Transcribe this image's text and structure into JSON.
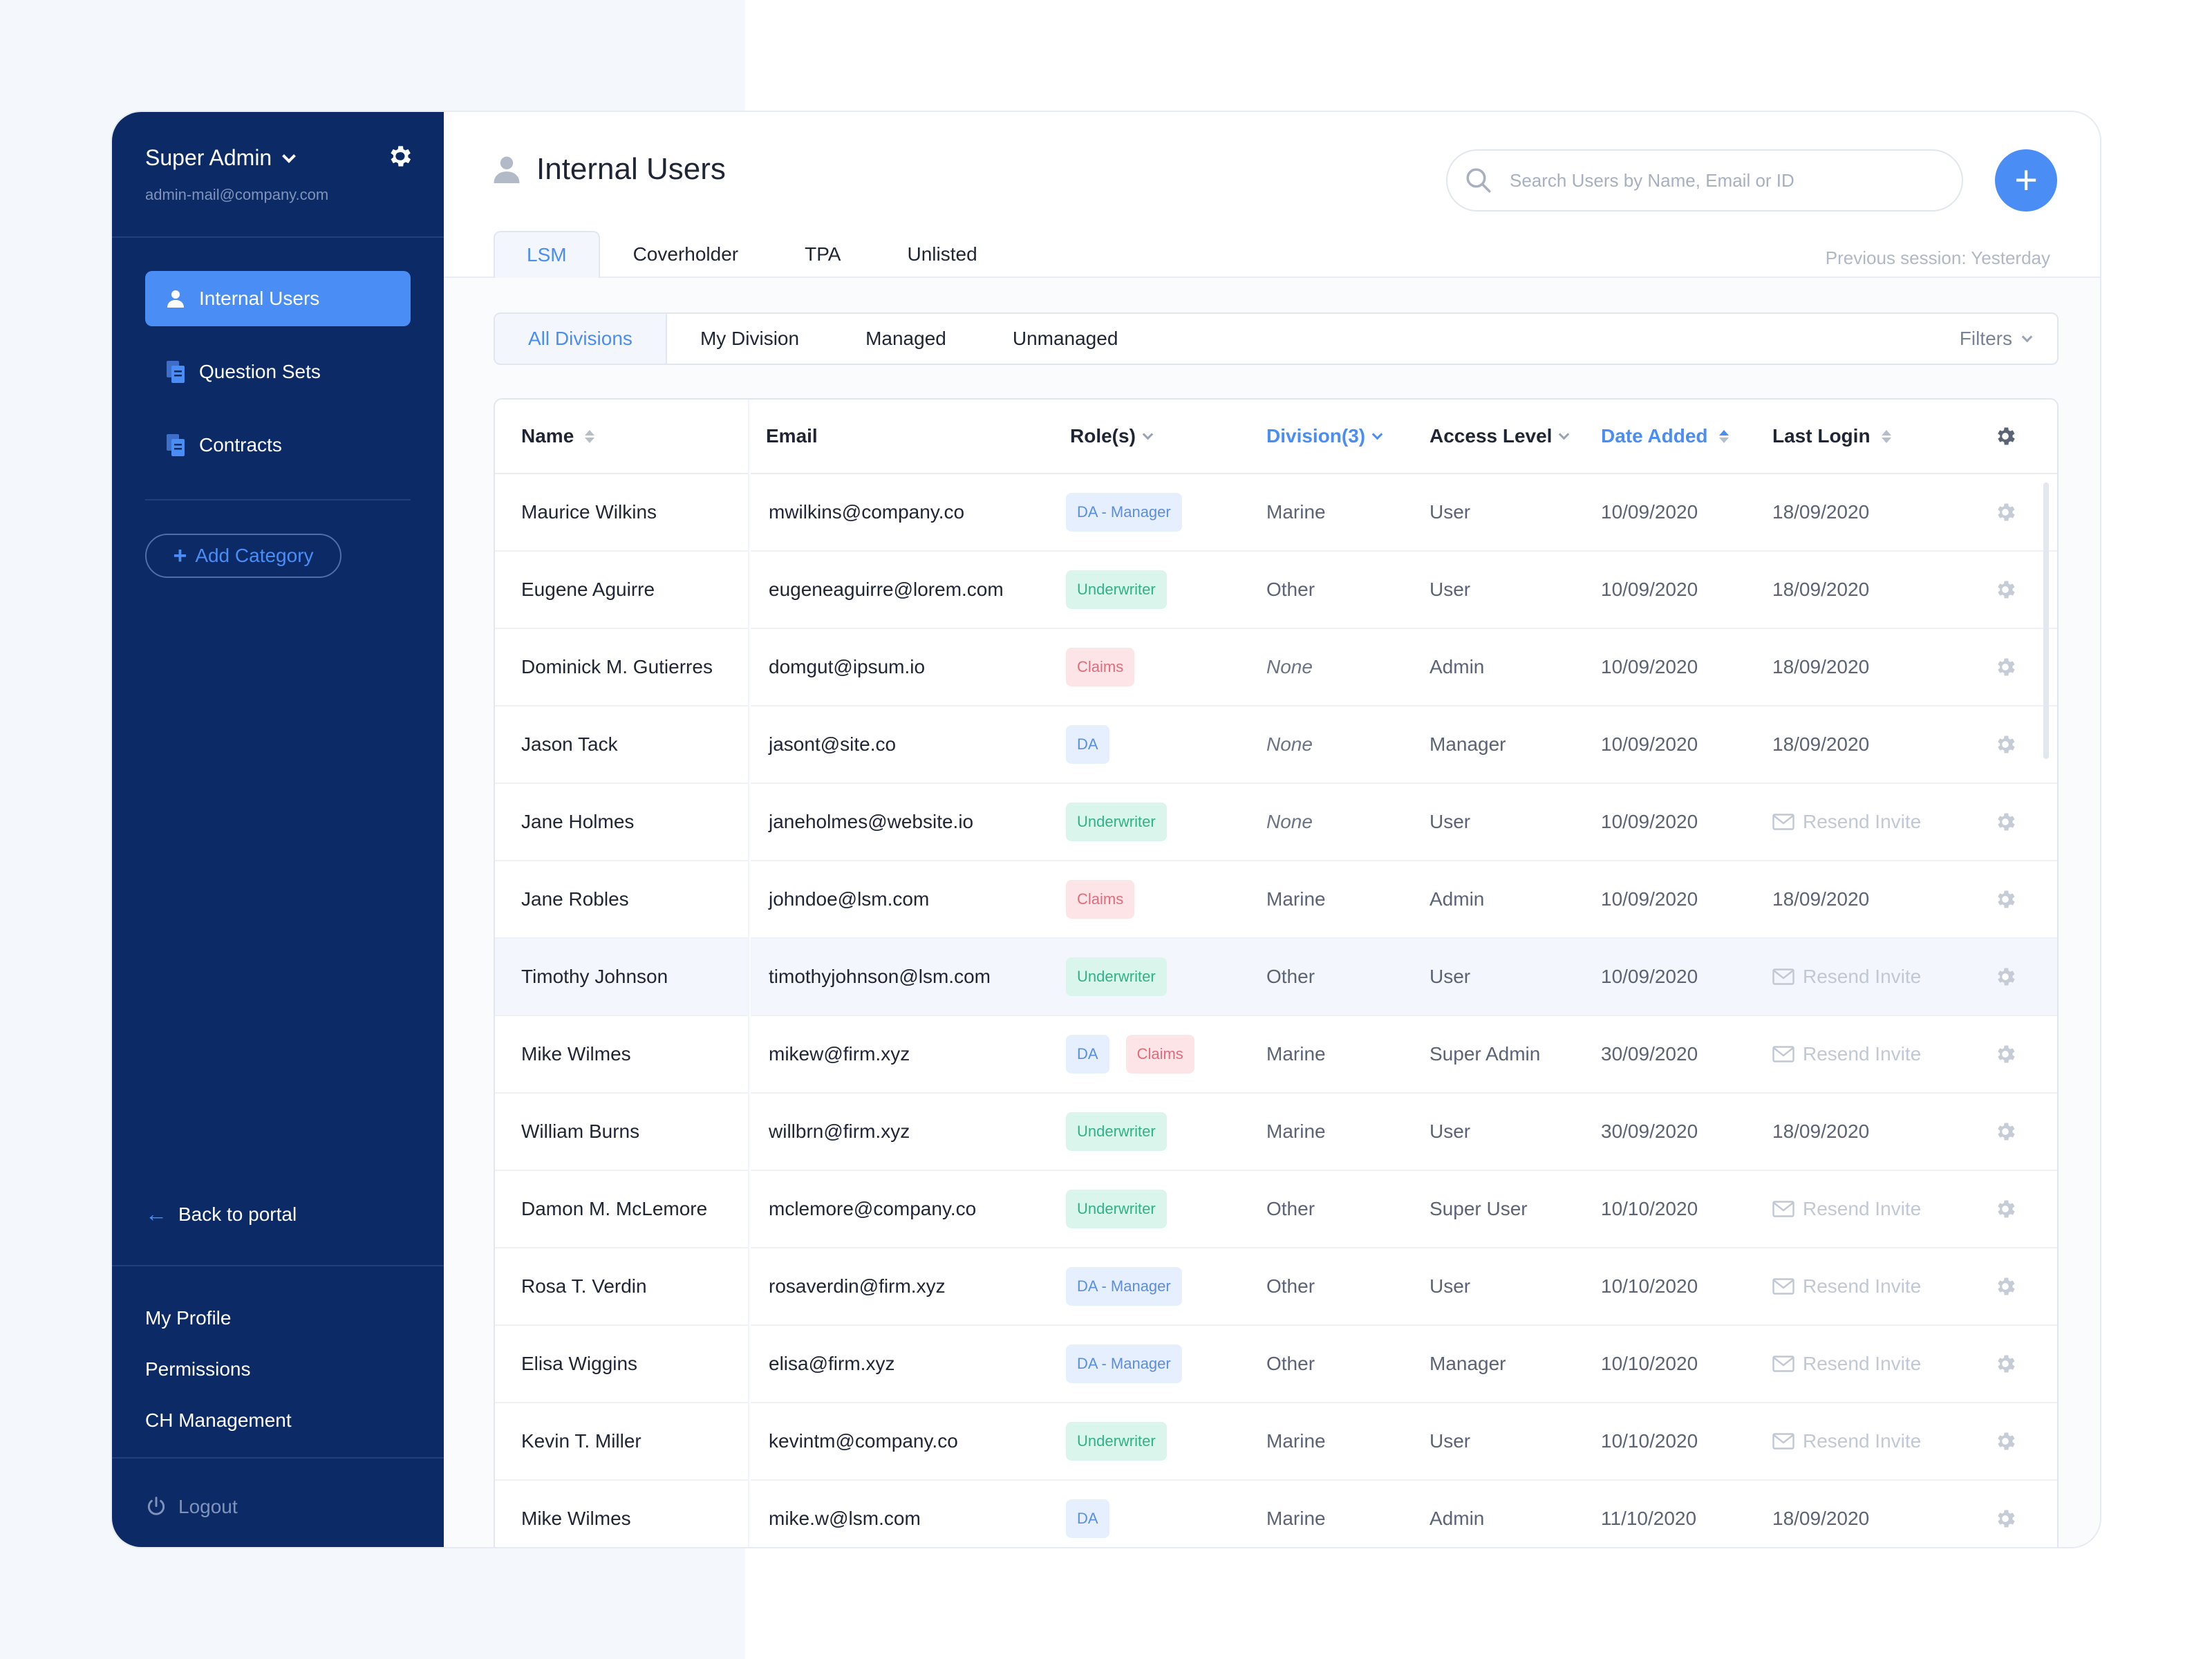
{
  "sidebar": {
    "role": "Super Admin",
    "email": "admin-mail@company.com",
    "nav": [
      {
        "label": "Internal Users",
        "icon": "user-icon"
      },
      {
        "label": "Question Sets",
        "icon": "document-icon"
      },
      {
        "label": "Contracts",
        "icon": "document-icon"
      }
    ],
    "add_category": "Add Category",
    "back_to_portal": "Back to portal",
    "links": [
      "My Profile",
      "Permissions",
      "CH Management"
    ],
    "logout": "Logout"
  },
  "header": {
    "title": "Internal Users",
    "search_placeholder": "Search Users by Name, Email or ID",
    "previous_session": "Previous session: Yesterday",
    "tabs": [
      "LSM",
      "Coverholder",
      "TPA",
      "Unlisted"
    ],
    "active_tab": "LSM"
  },
  "subtabs": {
    "items": [
      "All Divisions",
      "My Division",
      "Managed",
      "Unmanaged"
    ],
    "active": "All Divisions",
    "filters": "Filters"
  },
  "table": {
    "columns": {
      "name": "Name",
      "email": "Email",
      "roles": "Role(s)",
      "division": "Division(3)",
      "access": "Access Level",
      "date_added": "Date Added",
      "last_login": "Last Login"
    },
    "resend_label": "Resend Invite",
    "rows": [
      {
        "name": "Maurice Wilkins",
        "email": "mwilkins@company.co",
        "roles": [
          "DA - Manager"
        ],
        "division": "Marine",
        "access": "User",
        "date_added": "10/09/2020",
        "last_login": "18/09/2020"
      },
      {
        "name": "Eugene Aguirre",
        "email": "eugeneaguirre@lorem.com",
        "roles": [
          "Underwriter"
        ],
        "division": "Other",
        "access": "User",
        "date_added": "10/09/2020",
        "last_login": "18/09/2020"
      },
      {
        "name": "Dominick M. Gutierres",
        "email": "domgut@ipsum.io",
        "roles": [
          "Claims"
        ],
        "division": "None",
        "access": "Admin",
        "date_added": "10/09/2020",
        "last_login": "18/09/2020"
      },
      {
        "name": "Jason Tack",
        "email": "jasont@site.co",
        "roles": [
          "DA"
        ],
        "division": "None",
        "access": "Manager",
        "date_added": "10/09/2020",
        "last_login": "18/09/2020"
      },
      {
        "name": "Jane Holmes",
        "email": "janeholmes@website.io",
        "roles": [
          "Underwriter"
        ],
        "division": "None",
        "access": "User",
        "date_added": "10/09/2020",
        "last_login": "Resend Invite"
      },
      {
        "name": "Jane Robles",
        "email": "johndoe@lsm.com",
        "roles": [
          "Claims"
        ],
        "division": "Marine",
        "access": "Admin",
        "date_added": "10/09/2020",
        "last_login": "18/09/2020"
      },
      {
        "name": "Timothy Johnson",
        "email": "timothyjohnson@lsm.com",
        "roles": [
          "Underwriter"
        ],
        "division": "Other",
        "access": "User",
        "date_added": "10/09/2020",
        "last_login": "Resend Invite"
      },
      {
        "name": "Mike Wilmes",
        "email": "mikew@firm.xyz",
        "roles": [
          "DA",
          "Claims"
        ],
        "division": "Marine",
        "access": "Super Admin",
        "date_added": "30/09/2020",
        "last_login": "Resend Invite"
      },
      {
        "name": "William Burns",
        "email": "willbrn@firm.xyz",
        "roles": [
          "Underwriter"
        ],
        "division": "Marine",
        "access": "User",
        "date_added": "30/09/2020",
        "last_login": "18/09/2020"
      },
      {
        "name": "Damon M. McLemore",
        "email": "mclemore@company.co",
        "roles": [
          "Underwriter"
        ],
        "division": "Other",
        "access": "Super User",
        "date_added": "10/10/2020",
        "last_login": "Resend Invite"
      },
      {
        "name": "Rosa T. Verdin",
        "email": "rosaverdin@firm.xyz",
        "roles": [
          "DA - Manager"
        ],
        "division": "Other",
        "access": "User",
        "date_added": "10/10/2020",
        "last_login": "Resend Invite"
      },
      {
        "name": "Elisa Wiggins",
        "email": "elisa@firm.xyz",
        "roles": [
          "DA - Manager"
        ],
        "division": "Other",
        "access": "Manager",
        "date_added": "10/10/2020",
        "last_login": "Resend Invite"
      },
      {
        "name": "Kevin T. Miller",
        "email": "kevintm@company.co",
        "roles": [
          "Underwriter"
        ],
        "division": "Marine",
        "access": "User",
        "date_added": "10/10/2020",
        "last_login": "Resend Invite"
      },
      {
        "name": "Mike Wilmes",
        "email": "mike.w@lsm.com",
        "roles": [
          "DA"
        ],
        "division": "Marine",
        "access": "Admin",
        "date_added": "11/10/2020",
        "last_login": "18/09/2020"
      }
    ],
    "highlighted_row": 6
  },
  "colors": {
    "sidebar": "#0b2a66",
    "accent": "#4a8df5",
    "underwriter": "#2fb386",
    "claims": "#e26b7c",
    "da": "#5b8ee0"
  }
}
